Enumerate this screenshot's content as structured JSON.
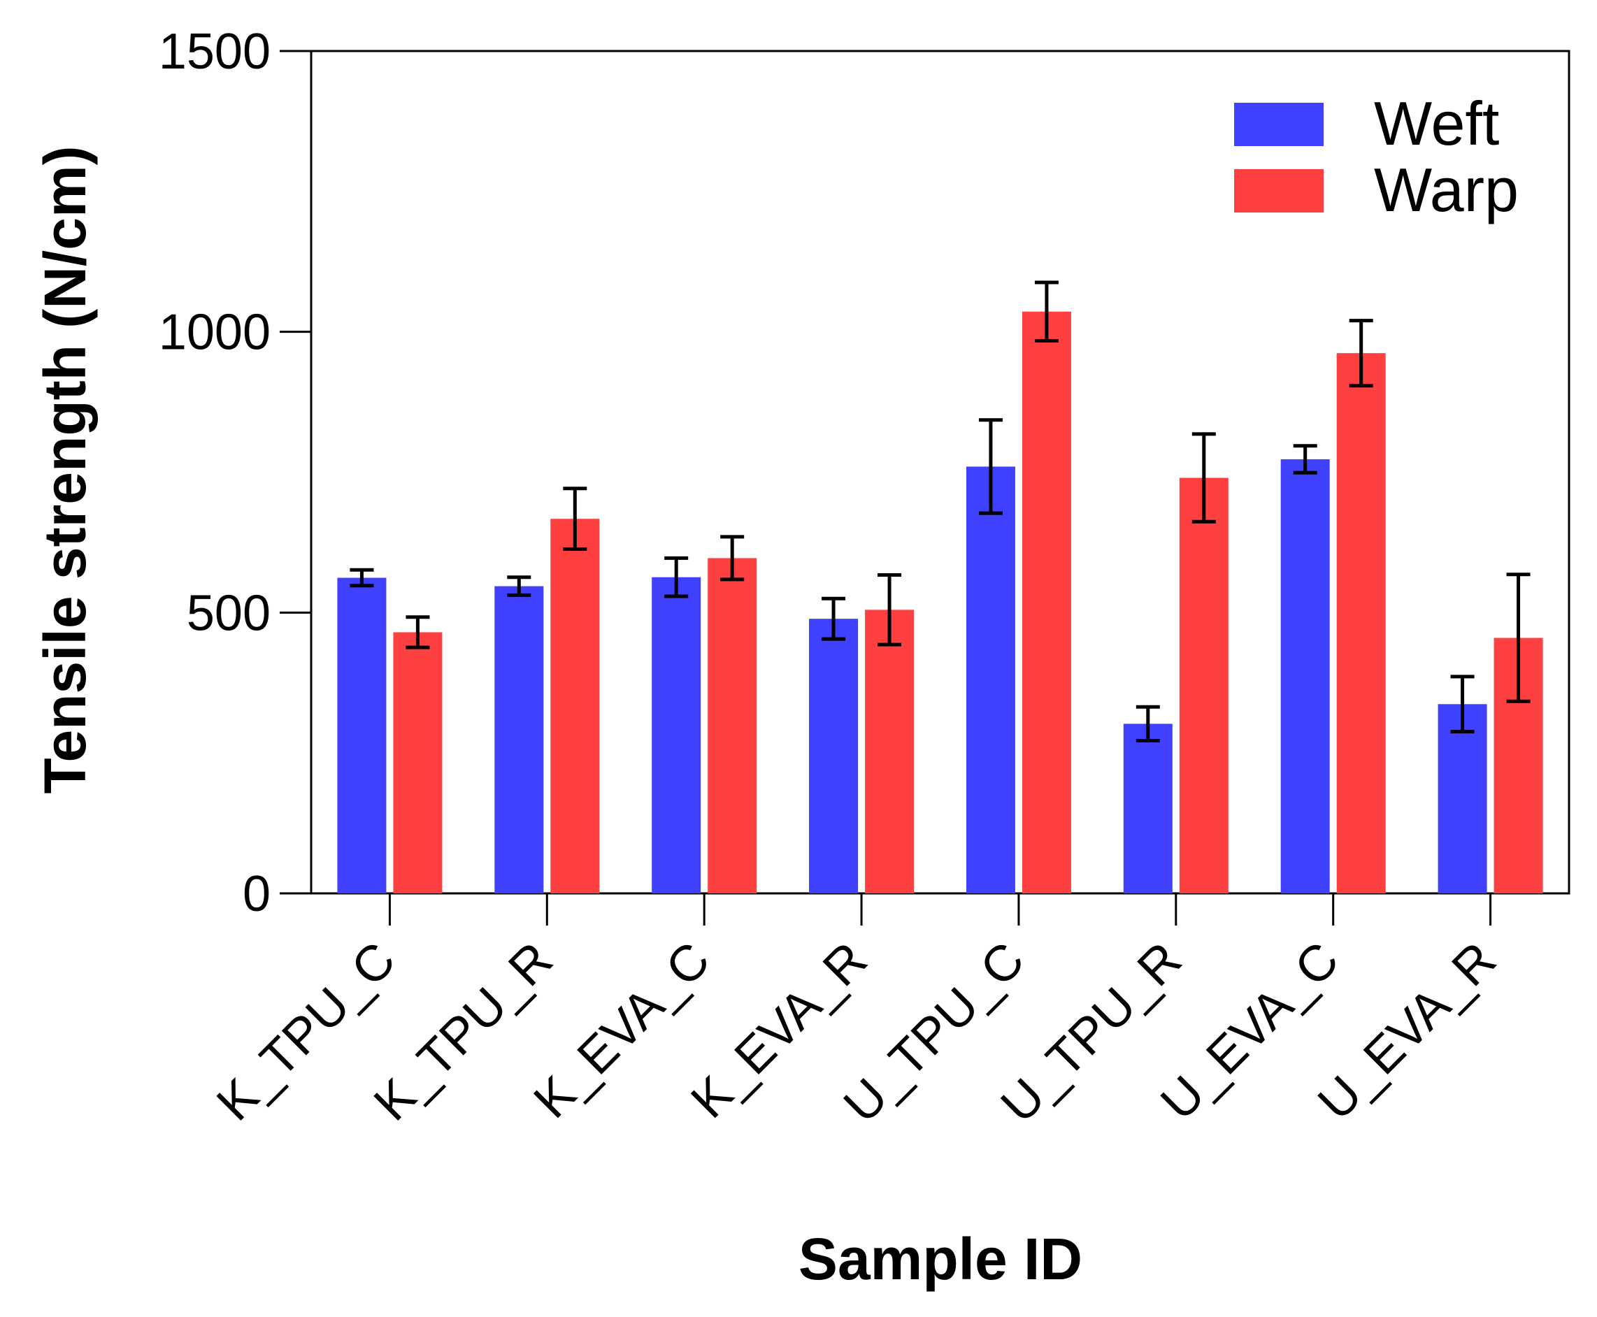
{
  "chart_data": {
    "type": "bar",
    "title": "",
    "xlabel": "Sample ID",
    "ylabel": "Tensile strength (N/cm)",
    "ylim": [
      0,
      1500
    ],
    "yticks": [
      0,
      500,
      1000,
      1500
    ],
    "ytick_labels": [
      "0",
      "500",
      "1000",
      "1500"
    ],
    "categories": [
      "K_TPU_C",
      "K_TPU_R",
      "K_EVA_C",
      "K_EVA_R",
      "U_TPU_C",
      "U_TPU_R",
      "U_EVA_C",
      "U_EVA_R"
    ],
    "series": [
      {
        "name": "Weft",
        "color": "#4040ff",
        "values": [
          562,
          547,
          563,
          489,
          760,
          302,
          773,
          337
        ],
        "errors": [
          14,
          16,
          34,
          36,
          83,
          30,
          24,
          49
        ]
      },
      {
        "name": "Warp",
        "color": "#ff4040",
        "values": [
          465,
          667,
          597,
          505,
          1036,
          740,
          962,
          455
        ],
        "errors": [
          27,
          54,
          38,
          62,
          52,
          78,
          58,
          113
        ]
      }
    ],
    "legend_position": "top-right",
    "grid": false
  }
}
